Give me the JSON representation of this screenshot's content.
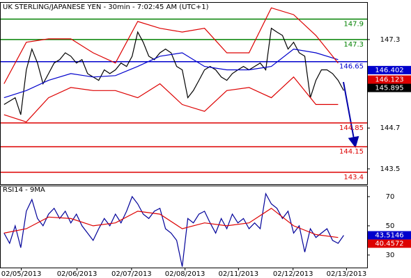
{
  "chart_data": [
    {
      "type": "line",
      "title": "UK STERLING/JAPANESE YEN - 30min - 7:02:45 AM (UTC+1)",
      "x": [
        0,
        1,
        2,
        3,
        4,
        5,
        6,
        7,
        8,
        9,
        10,
        11,
        12,
        13,
        14,
        15,
        16,
        17,
        18,
        19,
        20,
        21,
        22,
        23,
        24,
        25,
        26,
        27,
        28,
        29,
        30,
        31,
        32,
        33,
        34,
        35,
        36,
        37,
        38,
        39,
        40,
        41,
        42,
        43,
        44,
        45,
        46,
        47,
        48,
        49,
        50,
        51,
        52,
        53,
        54,
        55,
        56,
        57,
        58,
        59,
        60,
        61
      ],
      "xlim": [
        -0.6,
        65.2
      ],
      "xticks": [
        {
          "value": 3.1,
          "label": "02/05/2013"
        },
        {
          "value": 13.1,
          "label": "02/06/2013"
        },
        {
          "value": 22.9,
          "label": "02/07/2013"
        },
        {
          "value": 32.5,
          "label": "02/08/2013"
        },
        {
          "value": 42.1,
          "label": "02/11/2013"
        },
        {
          "value": 51.9,
          "label": "02/12/2013"
        },
        {
          "value": 61.5,
          "label": "02/13/2013"
        }
      ],
      "ylim": [
        143.05,
        148.38
      ],
      "yticks": [
        143.5,
        144.7,
        147.3
      ],
      "series": [
        {
          "color": "#000000",
          "values": [
            145.39,
            145.49,
            145.59,
            145.09,
            146.41,
            147.02,
            146.61,
            146.0,
            146.3,
            146.61,
            146.71,
            146.91,
            146.81,
            146.61,
            146.71,
            146.3,
            146.2,
            146.1,
            146.41,
            146.3,
            146.41,
            146.61,
            146.51,
            146.81,
            147.52,
            147.22,
            146.81,
            146.71,
            146.91,
            147.02,
            146.91,
            146.51,
            146.41,
            145.59,
            145.8,
            146.1,
            146.41,
            146.51,
            146.41,
            146.2,
            146.1,
            146.3,
            146.41,
            146.51,
            146.41,
            146.51,
            146.61,
            146.41,
            147.63,
            147.52,
            147.42,
            147.02,
            147.22,
            146.91,
            146.81,
            145.59,
            146.1,
            146.41,
            146.41,
            146.3,
            146.1,
            145.8
          ]
        },
        {
          "color": "#0000cc",
          "x": [
            0,
            4,
            8,
            12,
            16,
            20,
            24,
            28,
            32,
            36,
            40,
            44,
            48,
            52,
            56,
            60
          ],
          "values": [
            145.59,
            145.8,
            146.1,
            146.3,
            146.2,
            146.24,
            146.51,
            146.81,
            146.91,
            146.51,
            146.41,
            146.41,
            146.51,
            147.02,
            146.91,
            146.71
          ]
        },
        {
          "color": "#dd0000",
          "x": [
            0,
            4,
            8,
            12,
            16,
            20,
            24,
            28,
            32,
            36,
            40,
            44,
            48,
            52,
            56,
            60
          ],
          "values": [
            146.0,
            147.22,
            147.32,
            147.32,
            146.91,
            146.61,
            147.83,
            147.63,
            147.52,
            147.63,
            146.91,
            146.91,
            148.23,
            148.03,
            147.42,
            146.61
          ]
        },
        {
          "color": "#dd0000",
          "x": [
            0,
            4,
            8,
            12,
            16,
            20,
            24,
            28,
            32,
            36,
            40,
            44,
            48,
            52,
            56,
            60
          ],
          "values": [
            145.09,
            144.88,
            145.59,
            145.89,
            145.8,
            145.8,
            145.59,
            146.0,
            145.39,
            145.19,
            145.8,
            145.89,
            145.59,
            146.2,
            145.39,
            145.39
          ]
        }
      ],
      "levels": [
        {
          "value": 147.9,
          "color": "#008000"
        },
        {
          "value": 147.3,
          "color": "#008000"
        },
        {
          "value": 146.65,
          "color": "#0000cc"
        },
        {
          "value": 144.85,
          "color": "#dd0000"
        },
        {
          "value": 144.15,
          "color": "#dd0000"
        },
        {
          "value": 143.4,
          "color": "#dd0000"
        }
      ],
      "last_values": [
        {
          "value": 146.402,
          "color": "#0000cc"
        },
        {
          "value": 146.123,
          "color": "#dd0000"
        },
        {
          "value": 145.895,
          "color": "#000000"
        }
      ]
    },
    {
      "type": "line",
      "title": "RSI14 - 9MA",
      "x": [
        0,
        1,
        2,
        3,
        4,
        5,
        6,
        7,
        8,
        9,
        10,
        11,
        12,
        13,
        14,
        15,
        16,
        17,
        18,
        19,
        20,
        21,
        22,
        23,
        24,
        25,
        26,
        27,
        28,
        29,
        30,
        31,
        32,
        33,
        34,
        35,
        36,
        37,
        38,
        39,
        40,
        41,
        42,
        43,
        44,
        45,
        46,
        47,
        48,
        49,
        50,
        51,
        52,
        53,
        54,
        55,
        56,
        57,
        58,
        59,
        60,
        61
      ],
      "xlim": [
        -0.6,
        65.2
      ],
      "ylim": [
        21.4,
        77.1
      ],
      "yticks": [
        30,
        50,
        70
      ],
      "series": [
        {
          "color": "#000099",
          "values": [
            45,
            38,
            50,
            35,
            60,
            68,
            55,
            50,
            58,
            62,
            55,
            60,
            52,
            58,
            50,
            45,
            40,
            48,
            55,
            50,
            58,
            52,
            60,
            70,
            65,
            58,
            55,
            60,
            62,
            48,
            45,
            40,
            22,
            55,
            52,
            58,
            60,
            52,
            45,
            55,
            48,
            58,
            52,
            55,
            48,
            52,
            48,
            72,
            65,
            62,
            55,
            60,
            45,
            50,
            32,
            48,
            42,
            45,
            48,
            40,
            38,
            43.5
          ]
        },
        {
          "color": "#dd0000",
          "x": [
            0,
            4,
            8,
            12,
            16,
            20,
            24,
            28,
            32,
            36,
            40,
            44,
            48,
            52,
            56,
            60
          ],
          "values": [
            45,
            48,
            56,
            55,
            50,
            52,
            60,
            58,
            48,
            52,
            50,
            52,
            62,
            50,
            44,
            42
          ]
        }
      ],
      "last_values": [
        {
          "value": 43.5146,
          "color": "#0000cc"
        },
        {
          "value": 40.4572,
          "color": "#dd0000"
        }
      ]
    }
  ]
}
